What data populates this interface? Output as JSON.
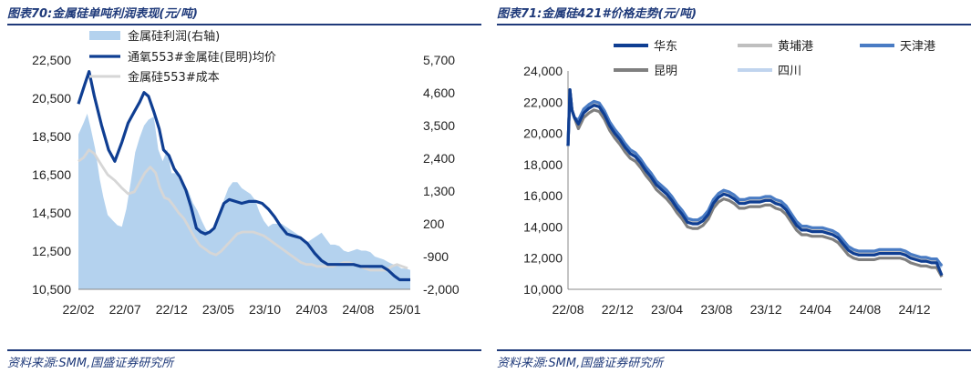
{
  "left": {
    "title": "图表70:金属硅单吨利润表现(元/吨)",
    "source": "资料来源:SMM,国盛证券研究所",
    "chart_data": {
      "type": "area",
      "x_labels": [
        "22/02",
        "22/07",
        "22/12",
        "23/05",
        "23/10",
        "24/03",
        "24/08",
        "25/01"
      ],
      "ylim_left": [
        10500,
        22500
      ],
      "yticks_left": [
        "10,500",
        "12,500",
        "14,500",
        "16,500",
        "18,500",
        "20,500",
        "22,500"
      ],
      "ylim_right": [
        -2000,
        5700
      ],
      "yticks_right": [
        "-2,000",
        "-900",
        "200",
        "1,300",
        "2,400",
        "3,500",
        "4,600",
        "5,700"
      ],
      "series": [
        {
          "name": "金属硅利润(右轴)",
          "axis": "right",
          "color": "#b4d2ee",
          "x": [
            0,
            0.6,
            1,
            1.4,
            1.9,
            2.4,
            2.8,
            3.3,
            3.9,
            4.4,
            4.9,
            5.4,
            5.9,
            6.4,
            6.9,
            7.4,
            7.9,
            8.5,
            9,
            9.5,
            10,
            10.5,
            11,
            11.5,
            11.9,
            12.4,
            12.9,
            13.4,
            13.9,
            14.4,
            14.9,
            15.4,
            15.9,
            16.4,
            16.9,
            17.4,
            17.9,
            18.4,
            18.9,
            19.4,
            19.9,
            20.4,
            20.9,
            21.4,
            21.9,
            22.4,
            22.9,
            23.4,
            23.9,
            24.4,
            24.9,
            25.4,
            25.9,
            26.4,
            26.9,
            27.4,
            27.9,
            28.4,
            28.9,
            29.4,
            29.9,
            30.4,
            30.9,
            31.4,
            31.9,
            32.4,
            32.9,
            33.4,
            33.9,
            34.4,
            35,
            35.4,
            35.9,
            36.4,
            36.9,
            37.4
          ],
          "values": [
            3200,
            3600,
            3900,
            3400,
            2700,
            1700,
            1100,
            500,
            300,
            150,
            100,
            700,
            1600,
            2600,
            3100,
            3500,
            3700,
            3800,
            2700,
            2300,
            2700,
            1900,
            1900,
            1600,
            1500,
            1300,
            900,
            650,
            300,
            0,
            -100,
            150,
            500,
            1000,
            1400,
            1600,
            1600,
            1400,
            1300,
            1200,
            1000,
            600,
            300,
            100,
            200,
            200,
            200,
            100,
            0,
            -100,
            -200,
            -350,
            -400,
            -300,
            -200,
            -100,
            -300,
            -500,
            -500,
            -550,
            -700,
            -750,
            -700,
            -650,
            -700,
            -700,
            -750,
            -900,
            -950,
            -1000,
            -1100,
            -1150,
            -1200,
            -1300,
            -1300,
            -1350
          ]
        },
        {
          "name": "通氧553#金属硅(昆明)均价",
          "axis": "left",
          "color": "#0f3e92",
          "x": [
            0,
            0.7,
            1.2,
            1.8,
            2.6,
            3.4,
            4.1,
            4.9,
            5.6,
            6.3,
            6.9,
            7.4,
            7.9,
            8.5,
            9.1,
            9.6,
            10.2,
            10.8,
            11.4,
            12.1,
            12.7,
            13.3,
            13.8,
            14.3,
            14.8,
            15.3,
            15.8,
            16.4,
            17,
            17.7,
            18.4,
            19.2,
            20,
            20.7,
            21.4,
            22.1,
            22.8,
            23.5,
            24.2,
            25,
            25.8,
            26.6,
            27.4,
            28.1,
            28.8,
            29.5,
            30.2,
            31,
            31.8,
            32.6,
            33.4,
            34.2,
            34.9,
            35.6,
            36.2,
            36.8,
            37.4
          ],
          "values": [
            20200,
            21200,
            21900,
            20600,
            19100,
            17800,
            17200,
            18200,
            19200,
            19800,
            20300,
            20800,
            20600,
            19800,
            18900,
            17800,
            17500,
            16800,
            16400,
            15700,
            14800,
            13700,
            13500,
            13400,
            13500,
            13700,
            14300,
            15000,
            15200,
            15100,
            15000,
            15100,
            15100,
            15000,
            14700,
            14300,
            13800,
            13400,
            13300,
            13200,
            12900,
            12400,
            12000,
            11800,
            11800,
            11800,
            11800,
            11800,
            11700,
            11700,
            11700,
            11700,
            11500,
            11200,
            11000,
            11000,
            11000
          ]
        },
        {
          "name": "金属硅553#成本",
          "axis": "left",
          "color": "#d6d6d6",
          "x": [
            0,
            0.6,
            1.2,
            1.8,
            2.6,
            3.3,
            4.1,
            4.9,
            5.6,
            6.3,
            6.9,
            7.5,
            8.1,
            8.7,
            9.2,
            9.7,
            10.2,
            10.7,
            11.3,
            11.9,
            12.5,
            13.1,
            13.7,
            14.3,
            14.9,
            15.5,
            16.1,
            16.7,
            17.3,
            17.9,
            18.5,
            19.1,
            19.7,
            20.3,
            20.9,
            21.5,
            22.1,
            22.7,
            23.3,
            23.9,
            24.5,
            25.1,
            25.7,
            26.3,
            26.9,
            27.5,
            28.1,
            28.7,
            29.3,
            29.9,
            30.5,
            31.1,
            31.7,
            32.3,
            32.9,
            33.5,
            34.1,
            34.7,
            35.3,
            35.9,
            36.5,
            37.1
          ],
          "values": [
            17200,
            17400,
            17800,
            17600,
            17000,
            16500,
            16200,
            15800,
            15500,
            15600,
            16100,
            16600,
            16900,
            16600,
            15800,
            15300,
            15200,
            14900,
            14500,
            14200,
            13700,
            13200,
            12800,
            12600,
            12400,
            12300,
            12500,
            12800,
            13100,
            13400,
            13500,
            13500,
            13500,
            13400,
            13300,
            13100,
            12900,
            12700,
            12500,
            12300,
            12100,
            11900,
            11800,
            11800,
            11700,
            11700,
            11700,
            11700,
            11800,
            11900,
            11900,
            11800,
            11700,
            11600,
            11500,
            11500,
            11500,
            11500,
            11700,
            11800,
            11700,
            11600
          ]
        }
      ],
      "legend": "top-left"
    }
  },
  "right": {
    "title": "图表71:金属硅421#价格走势(元/吨)",
    "source": "资料来源:SMM,国盛证券研究所",
    "chart_data": {
      "type": "line",
      "x_labels": [
        "22/08",
        "22/12",
        "23/04",
        "23/08",
        "23/12",
        "24/04",
        "24/08",
        "24/12"
      ],
      "ylim": [
        10000,
        24000
      ],
      "yticks": [
        "10,000",
        "12,000",
        "14,000",
        "16,000",
        "18,000",
        "20,000",
        "22,000",
        "24,000"
      ],
      "base_x": [
        0,
        0.15,
        0.3,
        0.5,
        0.8,
        1.2,
        1.6,
        2,
        2.4,
        2.8,
        3.2,
        3.6,
        4,
        4.4,
        4.8,
        5.2,
        5.6,
        6,
        6.4,
        6.8,
        7.2,
        7.6,
        8,
        8.4,
        8.8,
        9.2,
        9.6,
        10,
        10.4,
        10.8,
        11.2,
        11.6,
        12,
        12.4,
        12.8,
        13.2,
        13.6,
        14,
        14.4,
        14.8,
        15.2,
        15.6,
        16,
        16.4,
        16.8,
        17.2,
        17.6,
        18,
        18.4,
        18.8,
        19.2,
        19.6,
        20,
        20.4,
        20.8,
        21.2,
        21.6,
        22,
        22.4,
        22.8,
        23.2,
        23.6,
        24,
        24.4,
        24.8,
        25.2,
        25.6,
        26,
        26.4,
        26.8,
        27.2,
        27.6,
        28,
        28.4,
        28.8
      ],
      "base_values": [
        19200,
        22800,
        21500,
        21000,
        20600,
        21300,
        21600,
        21800,
        21700,
        21200,
        20500,
        20000,
        19600,
        19100,
        18700,
        18500,
        18100,
        17600,
        17200,
        16700,
        16400,
        16100,
        15700,
        15200,
        14800,
        14300,
        14200,
        14200,
        14400,
        14800,
        15500,
        15900,
        16100,
        16000,
        15800,
        15500,
        15500,
        15600,
        15600,
        15600,
        15700,
        15700,
        15500,
        15400,
        15100,
        14600,
        14100,
        13800,
        13800,
        13700,
        13700,
        13700,
        13600,
        13500,
        13300,
        12900,
        12500,
        12300,
        12200,
        12200,
        12200,
        12200,
        12300,
        12300,
        12300,
        12300,
        12300,
        12200,
        12000,
        11900,
        11800,
        11800,
        11700,
        11700,
        11400
      ],
      "series": [
        {
          "name": "华东",
          "color": "#0f3e92",
          "width": 3.2,
          "offset": 0,
          "end": -500
        },
        {
          "name": "黄埔港",
          "color": "#bfbfbf",
          "width": 3.2,
          "offset": 150,
          "end": 0
        },
        {
          "name": "天津港",
          "color": "#4a7cc4",
          "width": 3.2,
          "offset": 250,
          "end": -150
        },
        {
          "name": "昆明",
          "color": "#7f7f7f",
          "width": 3.2,
          "offset": -300,
          "end": -300
        },
        {
          "name": "四川",
          "color": "#c0d4ee",
          "width": 3.2,
          "offset": 0,
          "end": 0
        }
      ],
      "legend": "top"
    }
  }
}
